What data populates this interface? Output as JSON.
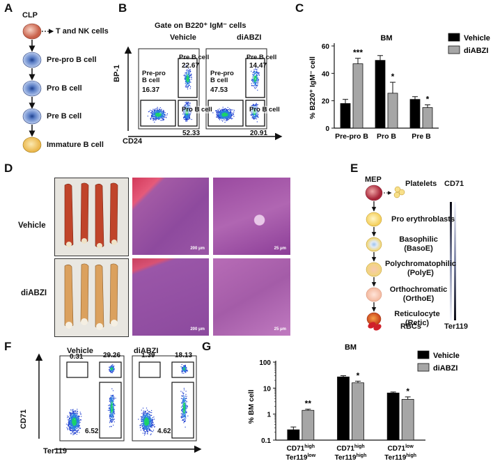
{
  "panel_labels": {
    "A": "A",
    "B": "B",
    "C": "C",
    "D": "D",
    "E": "E",
    "F": "F",
    "G": "G"
  },
  "panelA": {
    "root": "CLP",
    "branch": "T and NK cells",
    "stages": [
      "Pre-pro B cell",
      "Pro B cell",
      "Pre B cell",
      "Immature B cell"
    ]
  },
  "panelB": {
    "title": "Gate on B220⁺ IgM⁻ cells",
    "ylabel": "BP-1",
    "xlabel": "CD24",
    "plots": [
      {
        "name": "Vehicle",
        "prepro_label": "Pre-pro\nB cell",
        "prepro_value": "16.37",
        "preb_label": "Pre B cell",
        "preb_value": "22.67",
        "prob_label": "Pro B cell",
        "prob_value": "52.33"
      },
      {
        "name": "diABZI",
        "prepro_label": "Pre-pro\nB cell",
        "prepro_value": "47.53",
        "preb_label": "Pre B cell",
        "preb_value": "14.47",
        "prob_label": "Pro B cell",
        "prob_value": "20.91"
      }
    ]
  },
  "panelD": {
    "rows": [
      "Vehicle",
      "diABZI"
    ],
    "scale_bars": [
      "200 μm",
      "25 μm"
    ]
  },
  "panelE": {
    "root": "MEP",
    "branch": "Platelets",
    "stages": [
      "Pro erythroblasts",
      "Basophilic\n(BasoE)",
      "Polychromatophilic\n(PolyE)",
      "Orthochromatic\n(OrthoE)",
      "Reticulocyte\n(Retic)",
      "RBCs"
    ],
    "marker_top": "CD71",
    "marker_bottom": "Ter119"
  },
  "panelF": {
    "ylabel": "CD71",
    "xlabel": "Ter119",
    "plots": [
      {
        "name": "Vehicle",
        "q1": "0.31",
        "q2": "29.26",
        "q3": "6.52"
      },
      {
        "name": "diABZI",
        "q1": "1.39",
        "q2": "18.13",
        "q3": "4.62"
      }
    ]
  },
  "colors": {
    "vehicle": "#000000",
    "diabzi": "#a6a6a6"
  },
  "chart_data": [
    {
      "type": "bar",
      "title": "BM",
      "ylabel": "% B220⁺ IgM⁻ cell",
      "ylim": [
        0,
        60
      ],
      "yticks": [
        0,
        20,
        40,
        60
      ],
      "categories": [
        "Pre-pro B",
        "Pro B",
        "Pre B"
      ],
      "series": [
        {
          "name": "Vehicle",
          "values": [
            18,
            49.5,
            21
          ],
          "errors": [
            3,
            3.5,
            2
          ]
        },
        {
          "name": "diABZI",
          "values": [
            47,
            25.5,
            15
          ],
          "errors": [
            4,
            8,
            2
          ]
        }
      ],
      "annotations": [
        "***",
        "*",
        "*"
      ]
    },
    {
      "type": "bar",
      "title": "BM",
      "ylabel": "% BM cell",
      "yscale": "log",
      "ylim": [
        0.1,
        100
      ],
      "yticks": [
        "0.1",
        "1",
        "10",
        "100"
      ],
      "categories": [
        [
          "CD71high",
          "Ter119low"
        ],
        [
          "CD71high",
          "Ter119high"
        ],
        [
          "CD71low",
          "Ter119high"
        ]
      ],
      "series": [
        {
          "name": "Vehicle",
          "values": [
            0.25,
            27,
            6.5
          ],
          "errors": [
            0.07,
            3,
            0.6
          ]
        },
        {
          "name": "diABZI",
          "values": [
            1.4,
            16,
            3.7
          ],
          "errors": [
            0.15,
            2.5,
            0.9
          ]
        }
      ],
      "annotations": [
        "**",
        "*",
        "*"
      ]
    }
  ]
}
